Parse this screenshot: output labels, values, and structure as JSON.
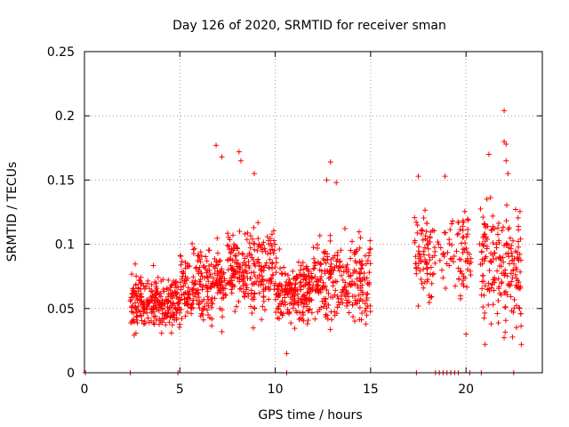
{
  "chart_data": {
    "type": "scatter",
    "title": "Day 126 of 2020, SRMTID for receiver sman",
    "xlabel": "GPS time / hours",
    "ylabel": "SRMTID / TECUs",
    "xlim": [
      0,
      24
    ],
    "ylim": [
      0,
      0.25
    ],
    "x_ticks": [
      0,
      5,
      10,
      15,
      20
    ],
    "x_tick_labels": [
      "0",
      "5",
      "10",
      "15",
      "20"
    ],
    "y_ticks": [
      0,
      0.05,
      0.1,
      0.15,
      0.2,
      0.25
    ],
    "y_tick_labels": [
      "0",
      "0.05",
      "0.1",
      "0.15",
      "0.2",
      "0.25"
    ],
    "grid": true,
    "marker": "+",
    "series": [
      {
        "name": "SRMTID",
        "color": "#ff0000",
        "clusters": [
          {
            "x_range": [
              2.4,
              5.0
            ],
            "y_center": 0.055,
            "y_spread": 0.015,
            "count": 260
          },
          {
            "x_range": [
              5.0,
              7.5
            ],
            "y_center": 0.068,
            "y_spread": 0.02,
            "count": 230
          },
          {
            "x_range": [
              7.5,
              10.0
            ],
            "y_center": 0.08,
            "y_spread": 0.022,
            "count": 230
          },
          {
            "x_range": [
              10.0,
              12.0
            ],
            "y_center": 0.062,
            "y_spread": 0.017,
            "count": 200
          },
          {
            "x_range": [
              12.0,
              15.0
            ],
            "y_center": 0.072,
            "y_spread": 0.022,
            "count": 260
          },
          {
            "x_range": [
              17.3,
              18.2
            ],
            "y_center": 0.09,
            "y_spread": 0.025,
            "count": 70
          },
          {
            "x_range": [
              18.2,
              19.6
            ],
            "y_center": 0.095,
            "y_spread": 0.02,
            "count": 40
          },
          {
            "x_range": [
              19.6,
              20.3
            ],
            "y_center": 0.09,
            "y_spread": 0.022,
            "count": 50
          },
          {
            "x_range": [
              20.7,
              22.9
            ],
            "y_center": 0.085,
            "y_spread": 0.032,
            "count": 190
          }
        ],
        "peaks": [
          {
            "x": 6.9,
            "y": 0.177
          },
          {
            "x": 7.2,
            "y": 0.168
          },
          {
            "x": 8.1,
            "y": 0.172
          },
          {
            "x": 8.2,
            "y": 0.165
          },
          {
            "x": 8.9,
            "y": 0.155
          },
          {
            "x": 12.9,
            "y": 0.164
          },
          {
            "x": 12.7,
            "y": 0.15
          },
          {
            "x": 13.2,
            "y": 0.148
          },
          {
            "x": 17.5,
            "y": 0.153
          },
          {
            "x": 18.9,
            "y": 0.153
          },
          {
            "x": 21.2,
            "y": 0.17
          },
          {
            "x": 22.0,
            "y": 0.204
          },
          {
            "x": 22.0,
            "y": 0.18
          },
          {
            "x": 22.1,
            "y": 0.178
          },
          {
            "x": 22.1,
            "y": 0.165
          },
          {
            "x": 22.2,
            "y": 0.155
          },
          {
            "x": 10.6,
            "y": 0.015
          },
          {
            "x": 21.0,
            "y": 0.022
          },
          {
            "x": 22.9,
            "y": 0.022
          },
          {
            "x": 20.0,
            "y": 0.03
          }
        ],
        "zero_x": [
          0.05,
          2.4,
          4.9,
          10.6,
          17.4,
          18.4,
          18.6,
          18.8,
          19.0,
          19.2,
          19.4,
          19.6,
          20.2,
          20.8,
          22.5
        ]
      }
    ]
  }
}
